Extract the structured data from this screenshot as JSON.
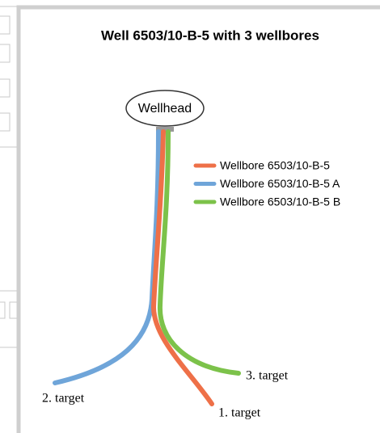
{
  "title": "Well 6503/10-B-5 with 3 wellbores",
  "wellhead": {
    "label": "Wellhead"
  },
  "wellbores": [
    {
      "name": "Wellbore 6503/10-B-5",
      "color": "#ee7048",
      "target": "1. target"
    },
    {
      "name": "Wellbore 6503/10-B-5 A",
      "color": "#6fa5d9",
      "target": "2. target"
    },
    {
      "name": "Wellbore 6503/10-B-5 B",
      "color": "#7cc24a",
      "target": "3. target"
    }
  ]
}
